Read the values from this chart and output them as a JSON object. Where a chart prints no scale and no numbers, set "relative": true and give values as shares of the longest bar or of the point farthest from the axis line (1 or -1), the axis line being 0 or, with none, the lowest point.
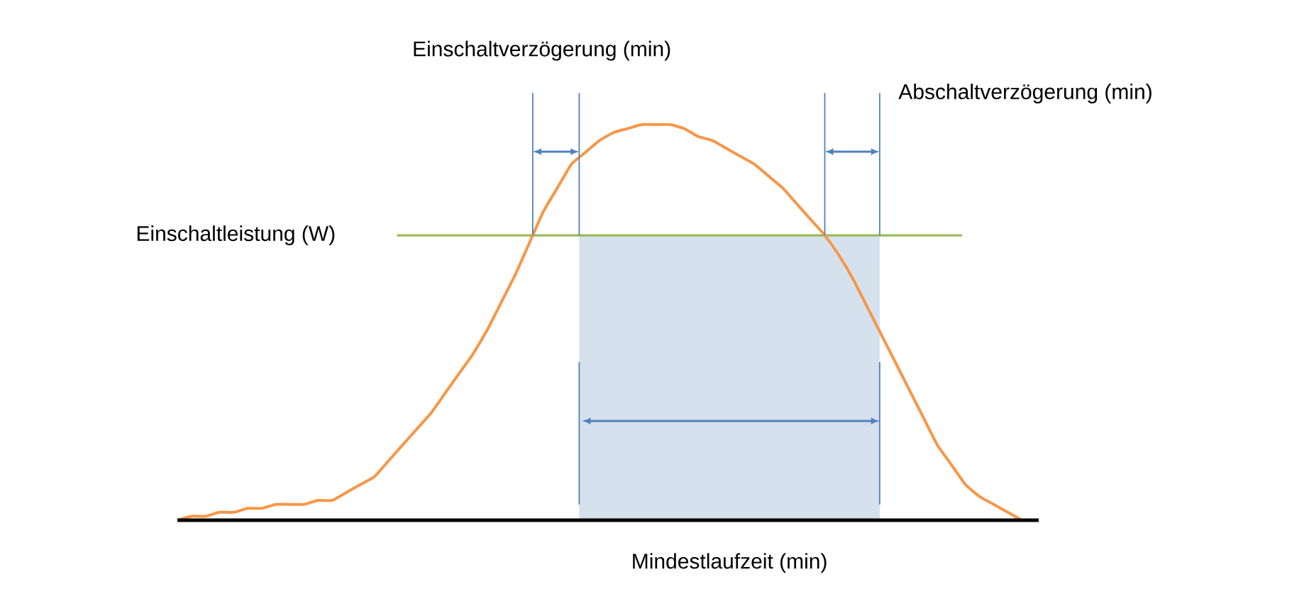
{
  "chart_data": {
    "type": "line",
    "relative": true,
    "marker": "none",
    "categories": [
      null,
      null,
      null,
      null,
      null,
      null,
      null,
      null,
      null,
      null,
      null,
      null,
      null,
      null,
      null,
      null,
      null,
      null,
      null,
      null,
      null,
      null,
      null,
      null,
      null,
      null,
      null,
      null,
      null,
      null,
      null,
      null,
      null,
      null,
      null,
      null,
      null,
      null,
      null,
      null,
      null,
      null,
      null,
      null,
      null,
      null,
      null,
      null,
      null,
      null,
      null,
      null,
      null,
      null,
      null,
      null,
      null,
      null,
      null,
      null,
      null
    ],
    "series": [
      {
        "color": "#f79646",
        "values": [
          0,
          0.01,
          0.01,
          0.02,
          0.02,
          0.03,
          0.03,
          0.04,
          0.04,
          0.04,
          0.05,
          0.05,
          0.07,
          0.09,
          0.11,
          0.15,
          0.19,
          0.23,
          0.27,
          0.32,
          0.37,
          0.42,
          0.48,
          0.55,
          0.62,
          0.7,
          0.78,
          0.84,
          0.9,
          0.93,
          0.96,
          0.98,
          0.99,
          1.0,
          1.0,
          1.0,
          0.99,
          0.97,
          0.96,
          0.94,
          0.92,
          0.9,
          0.87,
          0.84,
          0.8,
          0.76,
          0.72,
          0.67,
          0.61,
          0.54,
          0.47,
          0.4,
          0.33,
          0.26,
          0.19,
          0.14,
          0.09,
          0.06,
          0.04,
          0.02,
          0
        ]
      }
    ],
    "ref_lines": [
      {
        "axis": "y",
        "value": 0.72,
        "label": "Einschaltleistung (W)",
        "color": "#9bbb59"
      }
    ],
    "annotations": [
      "Einschaltverzögerung (min)",
      "Abschaltverzögerung (min)",
      "Mindestlaufzeit (min)"
    ]
  }
}
